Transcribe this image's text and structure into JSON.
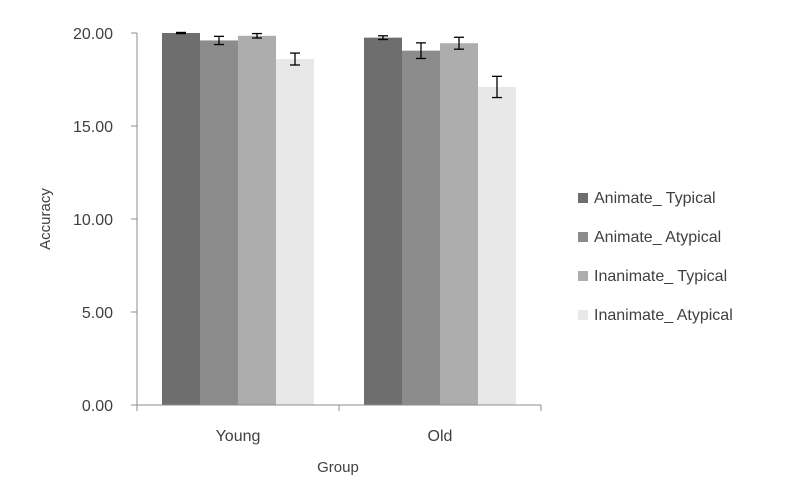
{
  "chart_data": {
    "type": "bar",
    "xlabel": "Group",
    "ylabel": "Accuracy",
    "categories": [
      "Young",
      "Old"
    ],
    "ylim": [
      0,
      20
    ],
    "yticks": [
      "0.00",
      "5.00",
      "10.00",
      "15.00",
      "20.00"
    ],
    "grid": false,
    "legend_position": "right",
    "series": [
      {
        "name": "Animate_ Typical",
        "color": "#6e6e6e",
        "values": [
          20.0,
          19.75
        ],
        "error": [
          0.03,
          0.1
        ]
      },
      {
        "name": "Animate_ Atypical",
        "color": "#8c8c8c",
        "values": [
          19.6,
          19.05
        ],
        "error": [
          0.22,
          0.42
        ]
      },
      {
        "name": "Inanimate_ Typical",
        "color": "#adadad",
        "values": [
          19.85,
          19.45
        ],
        "error": [
          0.12,
          0.32
        ]
      },
      {
        "name": "Inanimate_ Atypical",
        "color": "#e8e8e8",
        "values": [
          18.6,
          17.1
        ],
        "error": [
          0.32,
          0.57
        ]
      }
    ]
  }
}
